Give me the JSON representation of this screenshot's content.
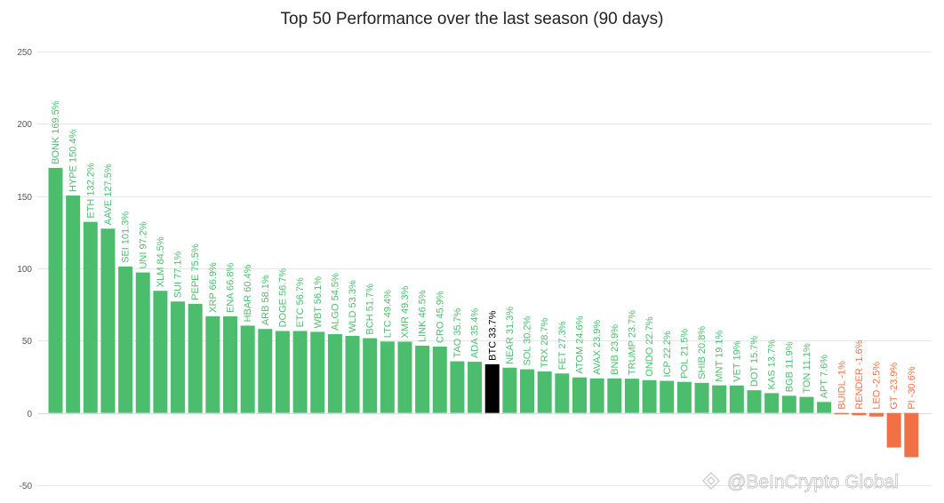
{
  "chart_data": {
    "type": "bar",
    "title": "Top 50 Performance over the last season (90 days)",
    "xlabel": "",
    "ylabel": "",
    "ylim": [
      -50,
      250
    ],
    "y_ticks": [
      -50,
      0,
      50,
      100,
      150,
      200,
      250
    ],
    "grid": true,
    "categories": [
      "BONK",
      "HYPE",
      "ETH",
      "AAVE",
      "SEI",
      "UNI",
      "XLM",
      "SUI",
      "PEPE",
      "XRP",
      "ENA",
      "HBAR",
      "ARB",
      "DOGE",
      "ETC",
      "WBT",
      "ALGO",
      "WLD",
      "BCH",
      "LTC",
      "XMR",
      "LINK",
      "CRO",
      "TAO",
      "ADA",
      "BTC",
      "NEAR",
      "SOL",
      "TRX",
      "FET",
      "ATOM",
      "AVAX",
      "BNB",
      "TRUMP",
      "ONDO",
      "ICP",
      "POL",
      "SHIB",
      "MNT",
      "VET",
      "DOT",
      "KAS",
      "BGB",
      "TON",
      "APT",
      "BUIDL",
      "RENDER",
      "LEO",
      "GT",
      "PI"
    ],
    "values": [
      169.5,
      150.4,
      132.2,
      127.5,
      101.3,
      97.2,
      84.5,
      77.1,
      75.5,
      66.9,
      66.8,
      60.4,
      58.1,
      56.7,
      56.7,
      56.1,
      54.5,
      53.3,
      51.7,
      49.4,
      49.3,
      46.5,
      45.9,
      35.7,
      35.4,
      33.7,
      31.3,
      30.2,
      28.7,
      27.3,
      24.6,
      23.9,
      23.9,
      23.7,
      22.7,
      22.2,
      21.5,
      20.8,
      19.1,
      19,
      15.7,
      13.7,
      11.9,
      11.1,
      7.6,
      -1,
      -1.6,
      -2.5,
      -23.9,
      -30.6
    ],
    "labels": [
      "BONK 169.5%",
      "HYPE 150.4%",
      "ETH 132.2%",
      "AAVE 127.5%",
      "SEI 101.3%",
      "UNI 97.2%",
      "XLM 84.5%",
      "SUI 77.1%",
      "PEPE 75.5%",
      "XRP 66.9%",
      "ENA 66.8%",
      "HBAR 60.4%",
      "ARB 58.1%",
      "DOGE 56.7%",
      "ETC 56.7%",
      "WBT 56.1%",
      "ALGO 54.5%",
      "WLD 53.3%",
      "BCH 51.7%",
      "LTC 49.4%",
      "XMR 49.3%",
      "LINK 46.5%",
      "CRO 45.9%",
      "TAO 35.7%",
      "ADA 35.4%",
      "BTC 33.7%",
      "NEAR 31.3%",
      "SOL 30.2%",
      "TRX 28.7%",
      "FET 27.3%",
      "ATOM 24.6%",
      "AVAX 23.9%",
      "BNB 23.9%",
      "TRUMP 23.7%",
      "ONDO 22.7%",
      "ICP 22.2%",
      "POL 21.5%",
      "SHIB 20.8%",
      "MNT 19.1%",
      "VET 19%",
      "DOT 15.7%",
      "KAS 13.7%",
      "BGB 11.9%",
      "TON 11.1%",
      "APT 7.6%",
      "BUIDL -1%",
      "RENDER -1.6%",
      "LEO -2.5%",
      "GT -23.9%",
      "PI -30.6%"
    ],
    "highlight": "BTC",
    "colors": {
      "positive": "#4cbd6d",
      "negative": "#ef7145",
      "highlight": "#000000",
      "grid": "#e6e6e6"
    }
  },
  "watermark": {
    "text": "@BeInCrypto Global",
    "icon": "beincrypto-logo-icon"
  }
}
